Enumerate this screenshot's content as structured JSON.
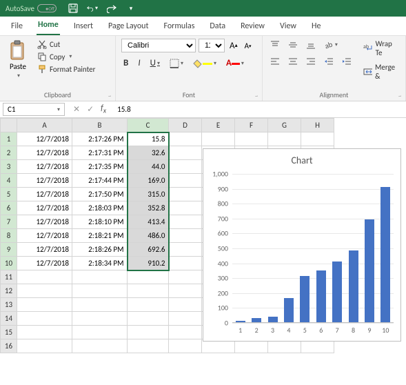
{
  "titlebar": {
    "autosave_label": "AutoSave",
    "autosave_state": "Off"
  },
  "tabs": [
    "File",
    "Home",
    "Insert",
    "Page Layout",
    "Formulas",
    "Data",
    "Review",
    "View",
    "He"
  ],
  "active_tab": "Home",
  "ribbon": {
    "clipboard": {
      "label": "Clipboard",
      "paste": "Paste",
      "cut": "Cut",
      "copy": "Copy",
      "format_painter": "Format Painter"
    },
    "font": {
      "label": "Font",
      "name": "Calibri",
      "size": "11",
      "bold": "B",
      "italic": "I",
      "underline": "U"
    },
    "alignment": {
      "label": "Alignment",
      "wrap": "Wrap Te",
      "merge": "Merge &"
    }
  },
  "namebox": {
    "ref": "C1",
    "formula": "15.8"
  },
  "columns": [
    "A",
    "B",
    "C",
    "D",
    "E",
    "F",
    "G",
    "H"
  ],
  "col_widths": {
    "A": 80,
    "B": 80,
    "C": 60,
    "D": 48,
    "E": 48,
    "F": 48,
    "G": 48,
    "H": 48
  },
  "row_count": 16,
  "selection": {
    "col": "C",
    "r1": 1,
    "r2": 10,
    "active_row": 1
  },
  "rows": [
    {
      "A": "12/7/2018",
      "B": "2:17:26 PM",
      "C": "15.8"
    },
    {
      "A": "12/7/2018",
      "B": "2:17:31 PM",
      "C": "32.6"
    },
    {
      "A": "12/7/2018",
      "B": "2:17:35 PM",
      "C": "44.0"
    },
    {
      "A": "12/7/2018",
      "B": "2:17:44 PM",
      "C": "169.0"
    },
    {
      "A": "12/7/2018",
      "B": "2:17:50 PM",
      "C": "315.0"
    },
    {
      "A": "12/7/2018",
      "B": "2:18:03 PM",
      "C": "352.8"
    },
    {
      "A": "12/7/2018",
      "B": "2:18:10 PM",
      "C": "413.4"
    },
    {
      "A": "12/7/2018",
      "B": "2:18:21 PM",
      "C": "486.0"
    },
    {
      "A": "12/7/2018",
      "B": "2:18:26 PM",
      "C": "692.6"
    },
    {
      "A": "12/7/2018",
      "B": "2:18:34 PM",
      "C": "910.2"
    }
  ],
  "chart": {
    "type": "bar",
    "title": "Chart",
    "title_fontsize": 14,
    "categories": [
      "1",
      "2",
      "3",
      "4",
      "5",
      "6",
      "7",
      "8",
      "9",
      "10"
    ],
    "values": [
      15.8,
      32.6,
      44.0,
      169.0,
      315.0,
      352.8,
      413.4,
      486.0,
      692.6,
      910.2
    ],
    "bar_color": "#4472c4",
    "ylim": [
      0,
      1000
    ],
    "ytick_step": 100,
    "yticks": [
      "0",
      "100",
      "200",
      "300",
      "400",
      "500",
      "600",
      "700",
      "800",
      "900",
      "1,000"
    ],
    "grid_color": "#e8e8e8",
    "axis_color": "#bfbfbf",
    "background_color": "#ffffff",
    "label_fontsize": 10,
    "bar_width": 0.6
  },
  "colors": {
    "brand": "#217346",
    "selection_fill": "#d9d9d9",
    "header_sel": "#d2e8d2"
  }
}
